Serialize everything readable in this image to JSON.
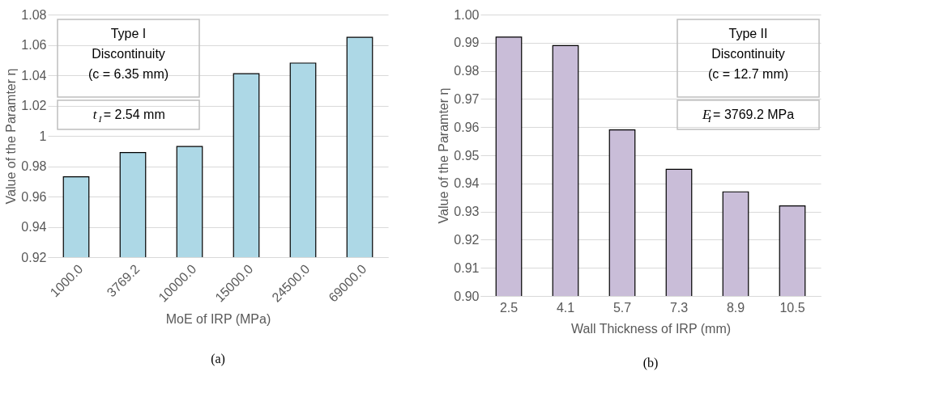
{
  "chart_data": [
    {
      "type": "bar",
      "categories": [
        "1000.0",
        "3769.2",
        "10000.0",
        "15000.0",
        "24500.0",
        "69000.0"
      ],
      "values": [
        0.973,
        0.989,
        0.993,
        1.041,
        1.048,
        1.065
      ],
      "color": "#add8e6",
      "ylim": [
        0.92,
        1.08
      ],
      "yticks": [
        0.92,
        0.94,
        0.96,
        0.98,
        1,
        1.02,
        1.04,
        1.06,
        1.08
      ],
      "xlabel": "MoE of IRP (MPa)",
      "ylabel": "Value of the Paramter η",
      "grid": "y",
      "annotations": [
        "Type I\nDiscontinuity\n(c = 6.35 mm)",
        "t$_{I}$= 2.54 mm",
        "(a)"
      ]
    },
    {
      "type": "bar",
      "categories": [
        "2.5",
        "4.1",
        "5.7",
        "7.3",
        "8.9",
        "10.5"
      ],
      "values": [
        0.992,
        0.989,
        0.959,
        0.945,
        0.937,
        0.932
      ],
      "color": "#c9bdd8",
      "ylim": [
        0.9,
        1.0
      ],
      "yticks": [
        {
          "value": 0.9,
          "label": "0.90"
        },
        0.91,
        0.92,
        0.93,
        0.94,
        0.95,
        0.96,
        0.97,
        0.98,
        0.99,
        {
          "value": 1.0,
          "label": "1.00"
        }
      ],
      "xlabel": "Wall Thickness of IRP (mm)",
      "ylabel": "Value of the Paramter η",
      "grid": "y",
      "annotations": [
        "Type II\nDiscontinuity\n(c = 12.7 mm)",
        "E$_{I}$= 3769.2 MPa",
        "(b)"
      ]
    }
  ]
}
